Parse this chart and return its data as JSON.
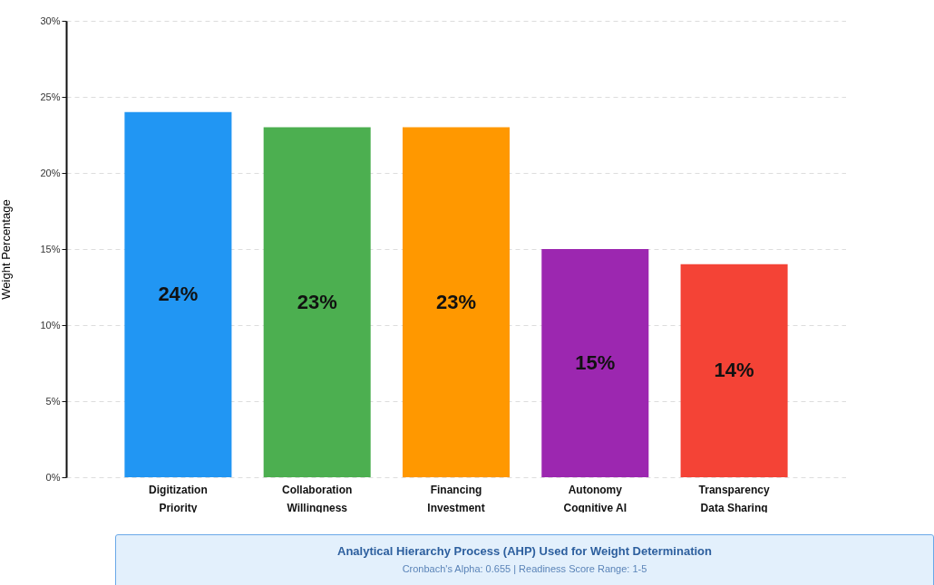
{
  "chart_data": {
    "type": "bar",
    "ylabel": "Weight Percentage",
    "categories": [
      "Digitization\nPriority",
      "Collaboration\nWillingness",
      "Financing\nInvestment",
      "Autonomy\nCognitive AI",
      "Transparency\nData Sharing"
    ],
    "values": [
      24,
      23,
      23,
      15,
      14
    ],
    "value_labels": [
      "24%",
      "23%",
      "23%",
      "15%",
      "14%"
    ],
    "colors": [
      "#2196f3",
      "#4caf50",
      "#ff9800",
      "#9c27b0",
      "#f44336"
    ],
    "ylim": [
      0,
      30
    ],
    "yticks": [
      {
        "value": 0,
        "label": "0%"
      },
      {
        "value": 5,
        "label": "5%"
      },
      {
        "value": 10,
        "label": "10%"
      },
      {
        "value": 15,
        "label": "15%"
      },
      {
        "value": 20,
        "label": "20%"
      },
      {
        "value": 25,
        "label": "25%"
      },
      {
        "value": 30,
        "label": "30%"
      }
    ],
    "grid": "y",
    "annotations": [
      "Analytical Hierarchy Process (AHP) Used for Weight Determination",
      "Cronbach's Alpha: 0.655 | Readiness Score Range: 1-5"
    ]
  }
}
